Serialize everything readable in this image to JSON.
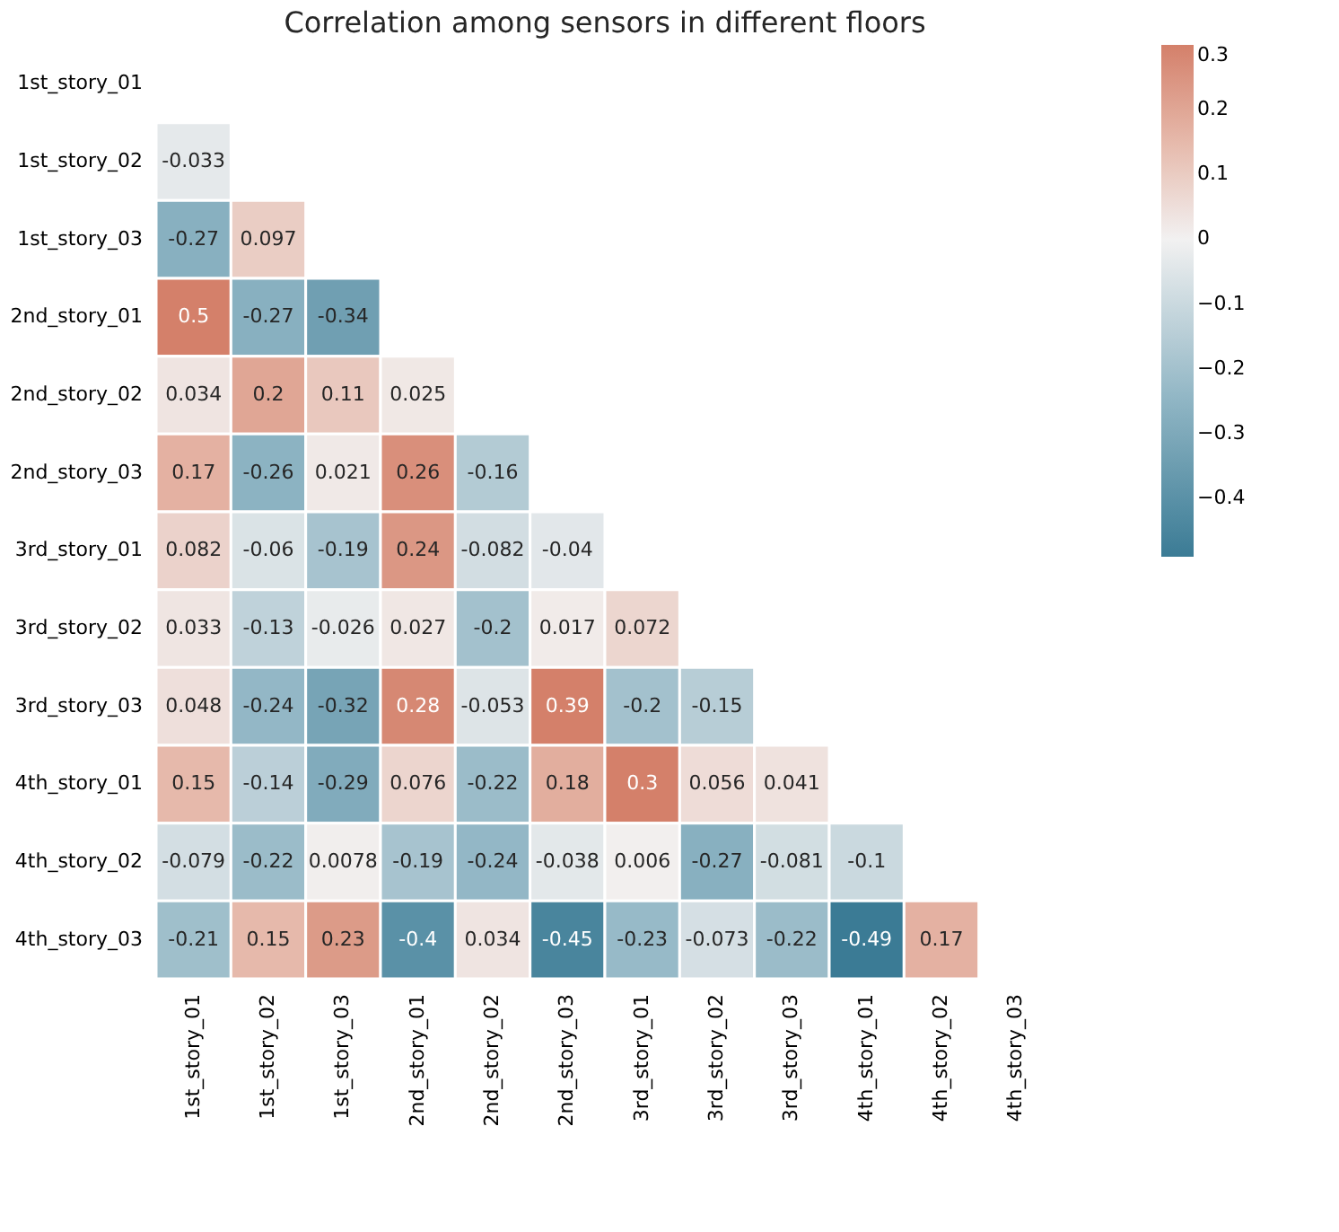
{
  "chart_data": {
    "type": "heatmap",
    "title": "Correlation among sensors in different floors",
    "categories": [
      "1st_story_01",
      "1st_story_02",
      "1st_story_03",
      "2nd_story_01",
      "2nd_story_02",
      "2nd_story_03",
      "3rd_story_01",
      "3rd_story_02",
      "3rd_story_03",
      "4th_story_01",
      "4th_story_02",
      "4th_story_03"
    ],
    "y_categories": [
      "1st_story_01",
      "1st_story_02",
      "1st_story_03",
      "2nd_story_01",
      "2nd_story_02",
      "2nd_story_03",
      "3rd_story_01",
      "3rd_story_02",
      "3rd_story_03",
      "4th_story_01",
      "4th_story_02",
      "4th_story_03"
    ],
    "cells": [
      [
        null,
        null,
        null,
        null,
        null,
        null,
        null,
        null,
        null,
        null,
        null,
        null
      ],
      [
        -0.033,
        null,
        null,
        null,
        null,
        null,
        null,
        null,
        null,
        null,
        null,
        null
      ],
      [
        -0.27,
        0.097,
        null,
        null,
        null,
        null,
        null,
        null,
        null,
        null,
        null,
        null
      ],
      [
        0.5,
        -0.27,
        -0.34,
        null,
        null,
        null,
        null,
        null,
        null,
        null,
        null,
        null
      ],
      [
        0.034,
        0.2,
        0.11,
        0.025,
        null,
        null,
        null,
        null,
        null,
        null,
        null,
        null
      ],
      [
        0.17,
        -0.26,
        0.021,
        0.26,
        -0.16,
        null,
        null,
        null,
        null,
        null,
        null,
        null
      ],
      [
        0.082,
        -0.06,
        -0.19,
        0.24,
        -0.082,
        -0.04,
        null,
        null,
        null,
        null,
        null,
        null
      ],
      [
        0.033,
        -0.13,
        -0.026,
        0.027,
        -0.2,
        0.017,
        0.072,
        null,
        null,
        null,
        null,
        null
      ],
      [
        0.048,
        -0.24,
        -0.32,
        0.28,
        -0.053,
        0.39,
        -0.2,
        -0.15,
        null,
        null,
        null,
        null
      ],
      [
        0.15,
        -0.14,
        -0.29,
        0.076,
        -0.22,
        0.18,
        0.3,
        0.056,
        0.041,
        null,
        null,
        null
      ],
      [
        -0.079,
        -0.22,
        0.0078,
        -0.19,
        -0.24,
        -0.038,
        0.006,
        -0.27,
        -0.081,
        -0.1,
        null,
        null
      ],
      [
        -0.21,
        0.15,
        0.23,
        -0.4,
        0.034,
        -0.45,
        -0.23,
        -0.073,
        -0.22,
        -0.49,
        0.17,
        null
      ]
    ],
    "clim": [
      -0.49,
      0.3
    ],
    "cticks": [
      0.3,
      0.2,
      0.1,
      0.0,
      -0.1,
      -0.2,
      -0.3,
      -0.4
    ],
    "data_labels": true,
    "grid": false
  }
}
